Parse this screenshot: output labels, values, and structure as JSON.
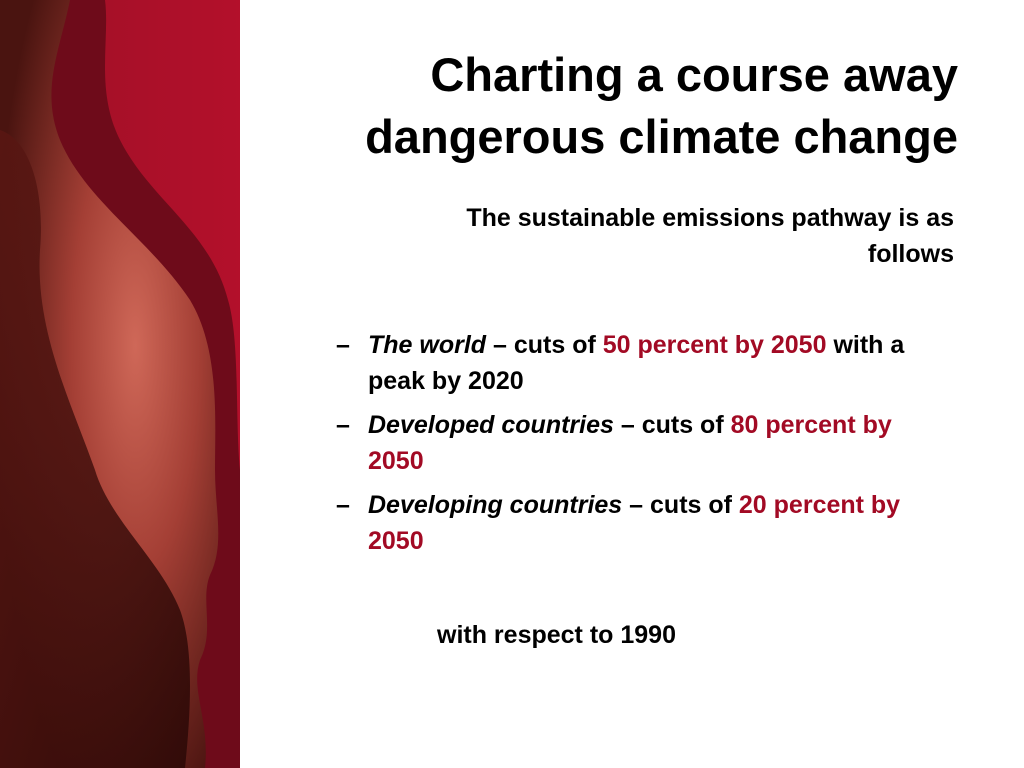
{
  "slide": {
    "title_line1": "Charting a course away",
    "title_line2": "dangerous climate change",
    "subtitle_line1": "The sustainable emissions pathway is as",
    "subtitle_line2": "follows",
    "bullets": [
      {
        "dash": "–",
        "subject": "The world",
        "connector": " – cuts of ",
        "target": "50 percent by 2050",
        "tail": " with a peak by 2020"
      },
      {
        "dash": "–",
        "subject": "Developed countries",
        "connector": " – cuts of ",
        "target": "80 percent by 2050",
        "tail": ""
      },
      {
        "dash": "–",
        "subject": "Developing countries",
        "connector": " – cuts of ",
        "target": "20 percent by 2050",
        "tail": ""
      }
    ],
    "footnote": "with respect to 1990"
  },
  "colors": {
    "accent_red": "#a20a24",
    "text": "#000000",
    "background": "#ffffff"
  }
}
